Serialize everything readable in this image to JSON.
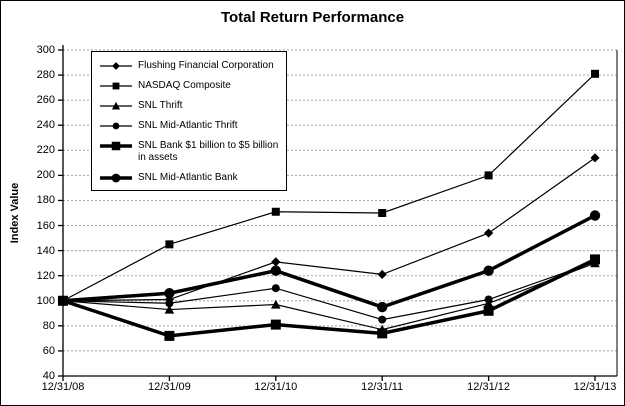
{
  "chart_data": {
    "type": "line",
    "title": "Total Return Performance",
    "xlabel": "",
    "ylabel": "Index Value",
    "ylim": [
      40,
      300
    ],
    "ytick_step": 20,
    "grid": "horizontal-dashed",
    "legend_position": "top-left-inside",
    "categories": [
      "12/31/08",
      "12/31/09",
      "12/31/10",
      "12/31/11",
      "12/31/12",
      "12/31/13"
    ],
    "series": [
      {
        "name": "Flushing Financial Corporation",
        "marker": "diamond",
        "thick": false,
        "values": [
          100,
          101,
          131,
          121,
          154,
          214
        ]
      },
      {
        "name": "NASDAQ Composite",
        "marker": "square",
        "thick": false,
        "values": [
          100,
          145,
          171,
          170,
          200,
          281
        ]
      },
      {
        "name": "SNL Thrift",
        "marker": "triangle",
        "thick": false,
        "values": [
          100,
          93,
          97,
          77,
          98,
          130
        ]
      },
      {
        "name": "SNL Mid-Atlantic Thrift",
        "marker": "circle",
        "thick": false,
        "values": [
          100,
          98,
          110,
          85,
          101,
          131
        ]
      },
      {
        "name": "SNL Bank $1 billion to $5 billion in assets",
        "marker": "square",
        "thick": true,
        "values": [
          100,
          72,
          81,
          74,
          92,
          133
        ]
      },
      {
        "name": "SNL Mid-Atlantic Bank",
        "marker": "circle",
        "thick": true,
        "values": [
          100,
          106,
          124,
          95,
          124,
          168
        ]
      }
    ],
    "colors": {
      "line": "#000000",
      "grid": "#a6a6a6",
      "background": "#ffffff"
    }
  }
}
